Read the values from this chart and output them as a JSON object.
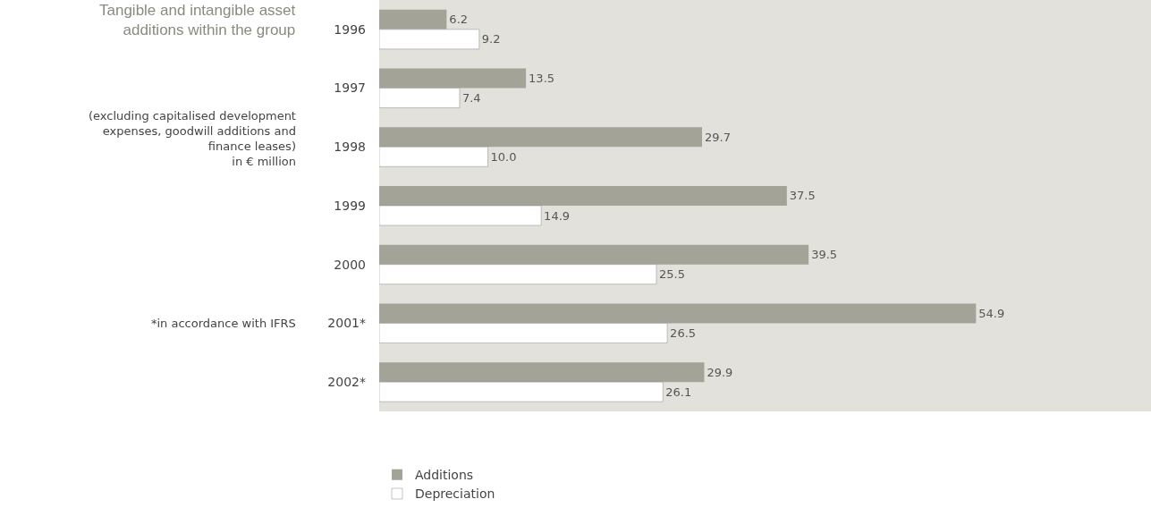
{
  "chart_data": {
    "type": "bar",
    "orientation": "horizontal",
    "title": "Tangible and intangible asset\nadditions within the group",
    "subtitle": "(excluding capitalised development\nexpenses, goodwill additions and\nfinance leases)\nin € million",
    "annotations": [
      "*in accordance with IFRS"
    ],
    "categories": [
      "1996",
      "1997",
      "1998",
      "1999",
      "2000",
      "2001*",
      "2002*"
    ],
    "series": [
      {
        "name": "Additions",
        "color": "#a3a398",
        "values": [
          6.2,
          13.5,
          29.7,
          37.5,
          39.5,
          54.9,
          29.9
        ],
        "value_labels": [
          "6.2",
          "13.5",
          "29.7",
          "37.5",
          "39.5",
          "54.9",
          "29.9"
        ]
      },
      {
        "name": "Depreciation",
        "color": "#ffffff",
        "values": [
          9.2,
          7.4,
          10.0,
          14.9,
          25.5,
          26.5,
          26.1
        ],
        "value_labels": [
          "9.2",
          "7.4",
          "10.0",
          "14.9",
          "25.5",
          "26.5",
          "26.1"
        ]
      }
    ],
    "xlim": [
      0,
      71
    ],
    "grid": false,
    "legend": "bottom left",
    "tick_labels": "y"
  }
}
